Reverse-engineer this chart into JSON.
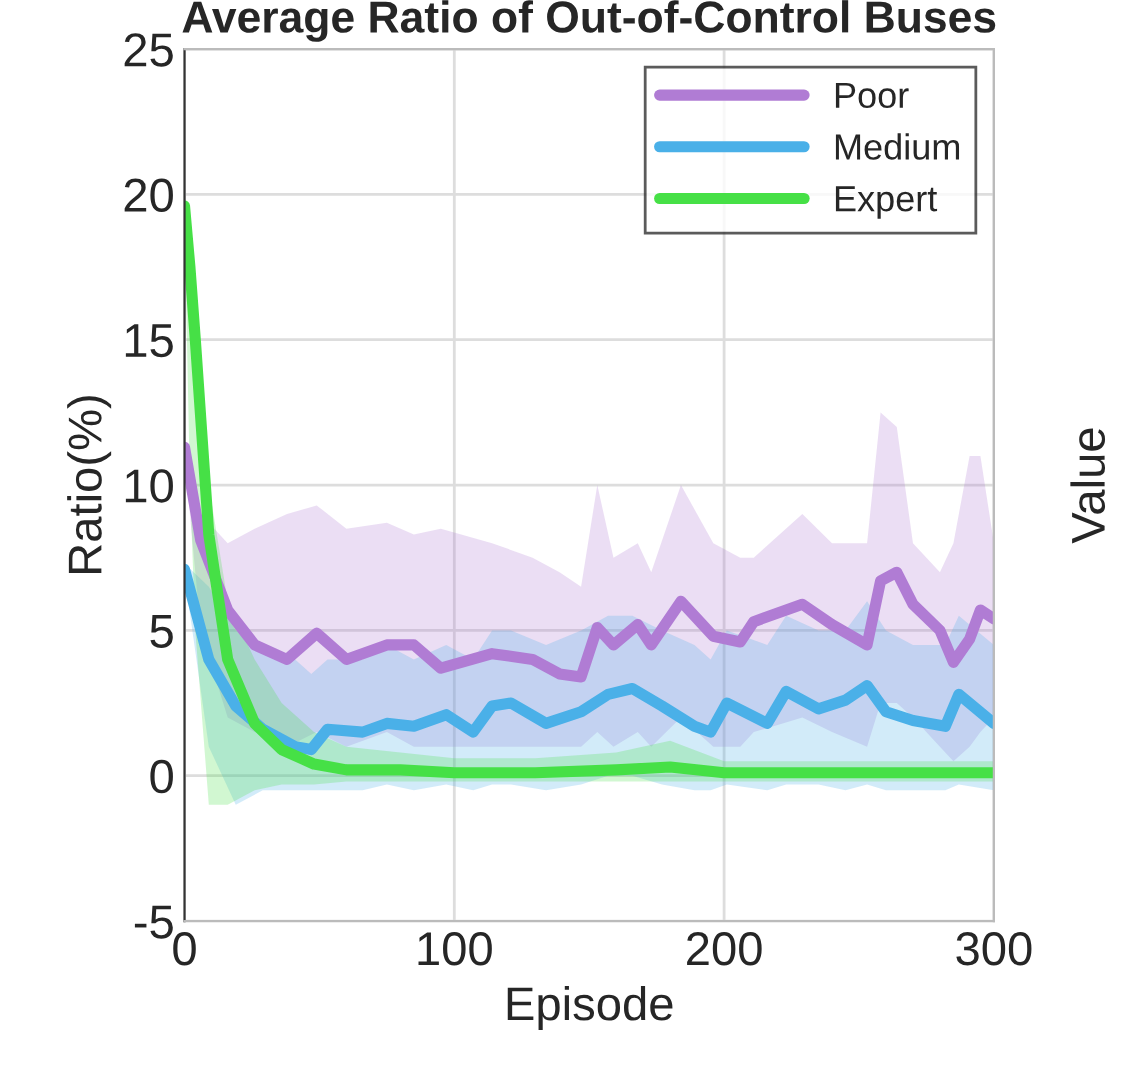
{
  "chart_data": {
    "type": "line",
    "title": "Average Ratio of Out-of-Control Buses",
    "xlabel": "Episode",
    "ylabel": "Ratio(%)",
    "y2label": "Value",
    "xlim": [
      0,
      300
    ],
    "xticks": [
      0,
      100,
      200,
      300
    ],
    "ylim": [
      -5,
      25
    ],
    "yticks": [
      -5,
      0,
      5,
      10,
      15,
      20,
      25
    ],
    "grid": true,
    "legend": "top right",
    "line_style": "solid",
    "marker": "none",
    "series": [
      {
        "name": "Poor",
        "color": "#b07cd4",
        "x": [
          0,
          6,
          16,
          26,
          38,
          49,
          60,
          75,
          85,
          95,
          114,
          129,
          139,
          147,
          153,
          159,
          168,
          173,
          184,
          196,
          206,
          211,
          229,
          240,
          253,
          258,
          264,
          270,
          280,
          285,
          291,
          295,
          300
        ],
        "values": [
          11.3,
          8.1,
          5.7,
          4.5,
          4.0,
          4.9,
          4.0,
          4.5,
          4.5,
          3.7,
          4.2,
          4.0,
          3.5,
          3.4,
          5.1,
          4.5,
          5.2,
          4.5,
          6.0,
          4.8,
          4.6,
          5.3,
          5.9,
          5.2,
          4.5,
          6.7,
          7.0,
          5.9,
          5.0,
          3.9,
          4.7,
          5.7,
          5.4
        ],
        "upper": [
          11.5,
          9.0,
          8.0,
          8.5,
          9.0,
          9.3,
          8.5,
          8.7,
          8.3,
          8.5,
          8.0,
          7.5,
          7.0,
          6.5,
          10.0,
          7.5,
          8.0,
          7.0,
          10.0,
          8.0,
          7.5,
          7.5,
          9.0,
          8.0,
          8.0,
          12.5,
          12.0,
          8.0,
          7.0,
          8.0,
          11.0,
          11.0,
          8.0
        ],
        "lower": [
          11.0,
          5.0,
          2.0,
          1.5,
          1.0,
          1.5,
          1.0,
          1.5,
          1.0,
          1.0,
          1.0,
          1.0,
          1.0,
          1.0,
          1.5,
          1.0,
          1.5,
          1.0,
          2.0,
          1.0,
          1.0,
          1.5,
          2.0,
          1.5,
          1.0,
          2.5,
          2.5,
          2.0,
          1.0,
          0.5,
          1.0,
          1.5,
          2.0
        ]
      },
      {
        "name": "Medium",
        "color": "#4ab0e8",
        "x": [
          0,
          9,
          19,
          29,
          41,
          47,
          53,
          66,
          75,
          85,
          97,
          107,
          114,
          121,
          134,
          147,
          157,
          166,
          177,
          189,
          195,
          201,
          216,
          223,
          235,
          245,
          253,
          260,
          270,
          282,
          287,
          300
        ],
        "values": [
          7.1,
          4.0,
          2.4,
          1.6,
          1.0,
          0.9,
          1.6,
          1.5,
          1.8,
          1.7,
          2.1,
          1.5,
          2.4,
          2.5,
          1.8,
          2.2,
          2.8,
          3.0,
          2.4,
          1.7,
          1.5,
          2.5,
          1.8,
          2.9,
          2.3,
          2.6,
          3.1,
          2.2,
          1.9,
          1.7,
          2.8,
          1.8
        ],
        "upper": [
          7.3,
          6.5,
          5.0,
          4.5,
          4.0,
          3.5,
          4.0,
          4.0,
          4.5,
          4.0,
          4.5,
          4.0,
          5.0,
          5.0,
          4.5,
          5.0,
          5.5,
          5.5,
          5.0,
          4.5,
          4.0,
          5.0,
          4.5,
          5.5,
          5.0,
          5.0,
          6.0,
          5.0,
          4.5,
          4.5,
          5.5,
          4.5
        ],
        "lower": [
          6.9,
          1.0,
          -1.0,
          -0.5,
          -0.5,
          -0.5,
          -0.5,
          -0.5,
          -0.3,
          -0.5,
          -0.3,
          -0.5,
          -0.3,
          -0.3,
          -0.5,
          -0.3,
          0,
          0,
          -0.3,
          -0.5,
          -0.5,
          -0.3,
          -0.5,
          -0.3,
          -0.3,
          -0.5,
          -0.3,
          -0.5,
          -0.5,
          -0.5,
          -0.3,
          -0.5
        ]
      },
      {
        "name": "Expert",
        "color": "#46e046",
        "x": [
          0,
          2,
          4,
          9,
          16,
          26,
          36,
          48,
          60,
          80,
          100,
          130,
          160,
          180,
          200,
          230,
          260,
          300
        ],
        "values": [
          19.6,
          17.5,
          15.0,
          8.3,
          4.0,
          1.8,
          0.9,
          0.4,
          0.2,
          0.2,
          0.1,
          0.1,
          0.2,
          0.3,
          0.1,
          0.1,
          0.1,
          0.1
        ],
        "upper": [
          20,
          18.5,
          16,
          10,
          6,
          4,
          2.5,
          1.5,
          1,
          0.8,
          0.6,
          0.6,
          0.8,
          1.2,
          0.5,
          0.5,
          0.5,
          0.5
        ],
        "lower": [
          19.2,
          10,
          5,
          -1,
          -1,
          -0.5,
          -0.3,
          -0.3,
          -0.2,
          -0.2,
          -0.2,
          -0.2,
          -0.2,
          -0.2,
          -0.2,
          -0.2,
          -0.2,
          -0.2
        ]
      }
    ]
  }
}
